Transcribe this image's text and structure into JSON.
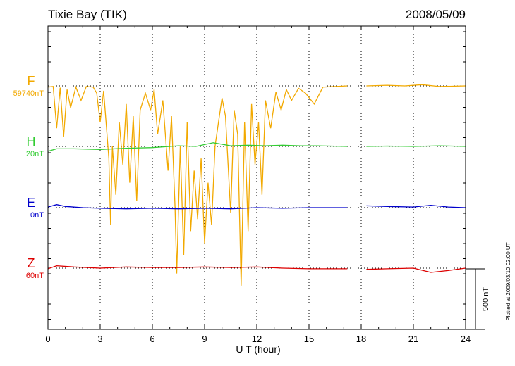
{
  "chart_data": {
    "type": "line",
    "title": "Tixie Bay (TIK)",
    "date": "2008/05/09",
    "xlabel": "U T (hour)",
    "xlim": [
      0,
      24
    ],
    "x_ticks": [
      0,
      3,
      6,
      9,
      12,
      15,
      18,
      21,
      24
    ],
    "x_tick_labels": [
      "0",
      "3",
      "6",
      "9",
      "12",
      "15",
      "18",
      "21",
      "24"
    ],
    "grid": "dotted vertical at 3-hour intervals, dotted baseline per component",
    "scale_bar": {
      "label": "500 nT",
      "value_nT": 500
    },
    "plot_note": "Plotted at 2009/03/10 02:00 UT",
    "data_gaps_ut_hours": [
      [
        17.2,
        18.3
      ]
    ],
    "series": [
      {
        "name": "F",
        "baseline_label": "59740nT",
        "color": "#f2a900",
        "description_points": [
          [
            0.0,
            -10
          ],
          [
            0.3,
            -5
          ],
          [
            0.5,
            -350
          ],
          [
            0.7,
            -15
          ],
          [
            0.9,
            -420
          ],
          [
            1.1,
            -30
          ],
          [
            1.3,
            -180
          ],
          [
            1.6,
            -10
          ],
          [
            1.9,
            -120
          ],
          [
            2.2,
            -5
          ],
          [
            2.6,
            -10
          ],
          [
            2.8,
            -60
          ],
          [
            3.0,
            -300
          ],
          [
            3.2,
            -40
          ],
          [
            3.5,
            -600
          ],
          [
            3.6,
            -1150
          ],
          [
            3.7,
            -500
          ],
          [
            3.9,
            -900
          ],
          [
            4.1,
            -300
          ],
          [
            4.3,
            -650
          ],
          [
            4.5,
            -150
          ],
          [
            4.7,
            -800
          ],
          [
            4.9,
            -250
          ],
          [
            5.1,
            -950
          ],
          [
            5.3,
            -200
          ],
          [
            5.6,
            -60
          ],
          [
            5.9,
            -200
          ],
          [
            6.1,
            -30
          ],
          [
            6.3,
            -400
          ],
          [
            6.6,
            -120
          ],
          [
            6.9,
            -700
          ],
          [
            7.1,
            -250
          ],
          [
            7.3,
            -1000
          ],
          [
            7.4,
            -1550
          ],
          [
            7.6,
            -500
          ],
          [
            7.8,
            -1400
          ],
          [
            8.0,
            -300
          ],
          [
            8.2,
            -1200
          ],
          [
            8.4,
            -700
          ],
          [
            8.6,
            -1100
          ],
          [
            8.8,
            -600
          ],
          [
            9.0,
            -1300
          ],
          [
            9.2,
            -800
          ],
          [
            9.4,
            -1150
          ],
          [
            9.6,
            -500
          ],
          [
            9.8,
            -300
          ],
          [
            10.0,
            -100
          ],
          [
            10.2,
            -250
          ],
          [
            10.5,
            -1050
          ],
          [
            10.7,
            -200
          ],
          [
            10.9,
            -400
          ],
          [
            11.1,
            -1650
          ],
          [
            11.3,
            -300
          ],
          [
            11.5,
            -1200
          ],
          [
            11.7,
            -150
          ],
          [
            11.9,
            -650
          ],
          [
            12.1,
            -300
          ],
          [
            12.3,
            -900
          ],
          [
            12.5,
            -120
          ],
          [
            12.8,
            -350
          ],
          [
            13.1,
            -50
          ],
          [
            13.4,
            -200
          ],
          [
            13.7,
            -30
          ],
          [
            14.0,
            -120
          ],
          [
            14.4,
            -20
          ],
          [
            14.8,
            -60
          ],
          [
            15.3,
            -150
          ],
          [
            15.8,
            -10
          ],
          [
            16.5,
            -5
          ],
          [
            17.2,
            0
          ],
          [
            18.3,
            0
          ],
          [
            19.5,
            5
          ],
          [
            20.5,
            0
          ],
          [
            21.5,
            10
          ],
          [
            22.5,
            -5
          ],
          [
            24.0,
            0
          ]
        ]
      },
      {
        "name": "H",
        "baseline_label": "20nT",
        "color": "#33cc33",
        "description_points": [
          [
            0.0,
            -40
          ],
          [
            0.5,
            -20
          ],
          [
            1.5,
            -20
          ],
          [
            3.0,
            -25
          ],
          [
            4.5,
            -15
          ],
          [
            6.0,
            -10
          ],
          [
            7.5,
            5
          ],
          [
            8.5,
            0
          ],
          [
            9.5,
            30
          ],
          [
            10.5,
            5
          ],
          [
            11.5,
            10
          ],
          [
            12.5,
            5
          ],
          [
            13.5,
            10
          ],
          [
            14.5,
            5
          ],
          [
            15.5,
            5
          ],
          [
            17.2,
            0
          ],
          [
            18.3,
            0
          ],
          [
            19.5,
            3
          ],
          [
            21.0,
            0
          ],
          [
            22.5,
            5
          ],
          [
            24.0,
            0
          ]
        ]
      },
      {
        "name": "E",
        "baseline_label": "0nT",
        "color": "#0000cc",
        "description_points": [
          [
            0.0,
            5
          ],
          [
            0.5,
            25
          ],
          [
            1.0,
            10
          ],
          [
            2.0,
            0
          ],
          [
            3.0,
            -5
          ],
          [
            4.5,
            -10
          ],
          [
            6.0,
            -5
          ],
          [
            7.5,
            -10
          ],
          [
            9.0,
            -5
          ],
          [
            10.5,
            -10
          ],
          [
            12.0,
            0
          ],
          [
            13.5,
            -5
          ],
          [
            15.0,
            0
          ],
          [
            17.2,
            0
          ],
          [
            18.3,
            15
          ],
          [
            19.5,
            10
          ],
          [
            21.0,
            5
          ],
          [
            22.0,
            20
          ],
          [
            23.0,
            5
          ],
          [
            24.0,
            0
          ]
        ]
      },
      {
        "name": "Z",
        "baseline_label": "60nT",
        "color": "#dd0000",
        "description_points": [
          [
            0.0,
            -5
          ],
          [
            0.5,
            20
          ],
          [
            1.5,
            10
          ],
          [
            3.0,
            0
          ],
          [
            4.5,
            10
          ],
          [
            6.0,
            5
          ],
          [
            7.5,
            5
          ],
          [
            9.0,
            10
          ],
          [
            10.5,
            5
          ],
          [
            12.0,
            10
          ],
          [
            13.5,
            0
          ],
          [
            15.0,
            -5
          ],
          [
            17.2,
            -5
          ],
          [
            18.3,
            -10
          ],
          [
            19.5,
            -5
          ],
          [
            21.0,
            0
          ],
          [
            22.0,
            -35
          ],
          [
            23.0,
            -20
          ],
          [
            24.0,
            0
          ]
        ]
      }
    ]
  }
}
